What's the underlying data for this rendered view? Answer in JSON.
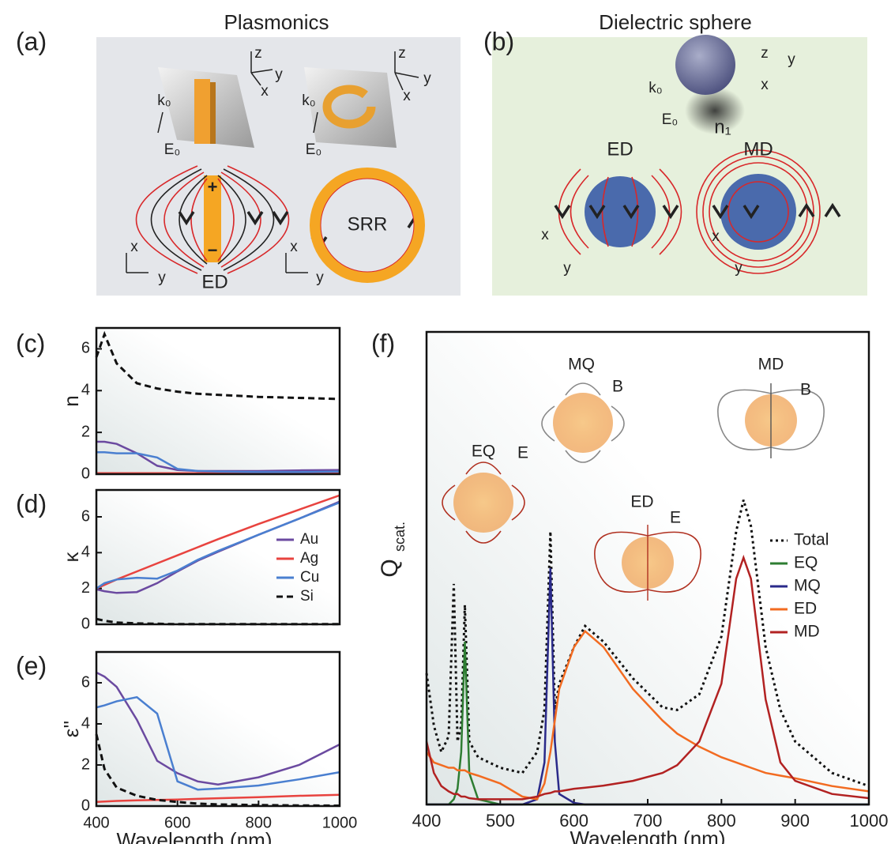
{
  "diagrams": {
    "a": {
      "label": "(a)",
      "title": "Plasmonics",
      "texts": [
        "z",
        "y",
        "x",
        "k₀",
        "E₀",
        "z",
        "y",
        "x",
        "k₀",
        "E₀",
        "+",
        "−",
        "SRR",
        "ED",
        "x",
        "y",
        "x",
        "y"
      ]
    },
    "b": {
      "label": "(b)",
      "title": "Dielectric sphere",
      "texts": [
        "z",
        "y",
        "x",
        "k₀",
        "E₀",
        "n₁",
        "ED",
        "MD",
        "x",
        "y",
        "x",
        "y"
      ]
    }
  },
  "chart_data": [
    {
      "type": "line",
      "label": "(c)",
      "ylabel": "n",
      "x": [
        400,
        420,
        450,
        500,
        550,
        600,
        650,
        700,
        800,
        900,
        1000
      ],
      "xlim": [
        400,
        1000
      ],
      "ylim": [
        0,
        7
      ],
      "yticks": [
        0,
        2,
        4,
        6
      ],
      "series": [
        {
          "color": "#6b4aa0",
          "dash": "solid",
          "values": [
            1.55,
            1.55,
            1.45,
            1.0,
            0.4,
            0.2,
            0.15,
            0.15,
            0.15,
            0.18,
            0.2
          ]
        },
        {
          "color": "#e8433f",
          "dash": "solid",
          "values": [
            0.05,
            0.05,
            0.05,
            0.05,
            0.05,
            0.05,
            0.05,
            0.05,
            0.05,
            0.05,
            0.05
          ]
        },
        {
          "color": "#4a7fd0",
          "dash": "solid",
          "values": [
            1.05,
            1.05,
            1.0,
            1.0,
            0.8,
            0.25,
            0.15,
            0.12,
            0.1,
            0.1,
            0.12
          ]
        },
        {
          "color": "#111111",
          "dash": "dashed",
          "values": [
            5.6,
            6.7,
            5.3,
            4.35,
            4.1,
            3.95,
            3.85,
            3.8,
            3.7,
            3.65,
            3.6
          ]
        }
      ]
    },
    {
      "type": "line",
      "label": "(d)",
      "ylabel": "κ",
      "x": [
        400,
        420,
        450,
        500,
        550,
        600,
        650,
        700,
        800,
        900,
        1000
      ],
      "xlim": [
        400,
        1000
      ],
      "ylim": [
        0,
        7.5
      ],
      "yticks": [
        0,
        2,
        4,
        6
      ],
      "legend": "right",
      "series": [
        {
          "name": "Au",
          "color": "#6b4aa0",
          "dash": "solid",
          "values": [
            1.95,
            1.85,
            1.75,
            1.8,
            2.3,
            2.95,
            3.55,
            4.05,
            5.0,
            5.9,
            6.85
          ]
        },
        {
          "name": "Ag",
          "color": "#e8433f",
          "dash": "solid",
          "values": [
            2.0,
            2.2,
            2.5,
            2.95,
            3.4,
            3.85,
            4.3,
            4.75,
            5.6,
            6.4,
            7.2
          ]
        },
        {
          "name": "Cu",
          "color": "#4a7fd0",
          "dash": "solid",
          "values": [
            2.0,
            2.3,
            2.5,
            2.6,
            2.55,
            3.0,
            3.6,
            4.1,
            5.0,
            5.9,
            6.8
          ]
        },
        {
          "name": "Si",
          "color": "#111111",
          "dash": "dashed",
          "values": [
            0.3,
            0.2,
            0.1,
            0.05,
            0.03,
            0.01,
            0.01,
            0.01,
            0.01,
            0.01,
            0.01
          ]
        }
      ]
    },
    {
      "type": "line",
      "label": "(e)",
      "ylabel": "ε''",
      "xlabel": "Wavelength (nm)",
      "x": [
        400,
        420,
        450,
        500,
        550,
        600,
        650,
        700,
        800,
        900,
        1000
      ],
      "xlim": [
        400,
        1000
      ],
      "ylim": [
        0,
        7.5
      ],
      "yticks": [
        0,
        2,
        4,
        6
      ],
      "xticks": [
        400,
        600,
        800,
        1000
      ],
      "series": [
        {
          "color": "#6b4aa0",
          "dash": "solid",
          "values": [
            6.5,
            6.3,
            5.8,
            4.2,
            2.2,
            1.6,
            1.2,
            1.05,
            1.4,
            2.0,
            3.0
          ]
        },
        {
          "color": "#e8433f",
          "dash": "solid",
          "values": [
            0.2,
            0.22,
            0.25,
            0.28,
            0.3,
            0.32,
            0.35,
            0.38,
            0.43,
            0.5,
            0.55
          ]
        },
        {
          "color": "#4a7fd0",
          "dash": "solid",
          "values": [
            4.8,
            4.9,
            5.1,
            5.3,
            4.5,
            1.2,
            0.8,
            0.85,
            1.0,
            1.3,
            1.65
          ]
        },
        {
          "color": "#111111",
          "dash": "dashed",
          "values": [
            3.5,
            1.8,
            0.9,
            0.5,
            0.3,
            0.2,
            0.12,
            0.08,
            0.05,
            0.03,
            0.02
          ]
        }
      ]
    },
    {
      "type": "line",
      "label": "(f)",
      "ylabel": "Q",
      "ylabel_sub": "scat.",
      "xlabel": "Wavelength (nm)",
      "x": [
        400,
        410,
        420,
        430,
        437,
        442,
        447,
        452,
        458,
        470,
        500,
        530,
        550,
        560,
        568,
        574,
        580,
        600,
        615,
        640,
        680,
        720,
        740,
        770,
        800,
        820,
        830,
        840,
        860,
        880,
        900,
        950,
        1000
      ],
      "xlim": [
        400,
        1000
      ],
      "ylim": [
        0,
        9
      ],
      "xticks": [
        400,
        500,
        600,
        700,
        800,
        900,
        1000
      ],
      "legend": "right",
      "series": [
        {
          "name": "Total",
          "color": "#111111",
          "dash": "dotted",
          "values": [
            2.5,
            1.5,
            1.0,
            1.3,
            4.2,
            1.2,
            1.5,
            3.8,
            1.2,
            0.9,
            0.7,
            0.6,
            1.0,
            1.8,
            5.2,
            1.8,
            2.3,
            3.0,
            3.4,
            3.1,
            2.4,
            1.85,
            1.8,
            2.1,
            3.2,
            5.2,
            5.8,
            5.3,
            3.0,
            1.8,
            1.2,
            0.6,
            0.35
          ]
        },
        {
          "name": "EQ",
          "color": "#2e7d32",
          "dash": "solid",
          "values": [
            0,
            0,
            0,
            0,
            0.1,
            0.3,
            1.0,
            3.1,
            0.6,
            0.1,
            0,
            0,
            0,
            0,
            0,
            0,
            0,
            0,
            0,
            0,
            0,
            0,
            0,
            0,
            0,
            0,
            0,
            0,
            0,
            0,
            0,
            0,
            0
          ]
        },
        {
          "name": "MQ",
          "color": "#2a2a8a",
          "dash": "solid",
          "values": [
            0,
            0,
            0,
            0,
            0,
            0,
            0,
            0,
            0,
            0,
            0,
            0,
            0.1,
            0.8,
            4.5,
            1.2,
            0.2,
            0.03,
            0,
            0,
            0,
            0,
            0,
            0,
            0,
            0,
            0,
            0,
            0,
            0,
            0,
            0,
            0
          ]
        },
        {
          "name": "ED",
          "color": "#f26b21",
          "dash": "solid",
          "values": [
            1.0,
            0.8,
            0.75,
            0.7,
            0.7,
            0.65,
            0.65,
            0.65,
            0.6,
            0.55,
            0.4,
            0.15,
            0.1,
            0.4,
            1.0,
            1.6,
            2.2,
            3.0,
            3.3,
            3.0,
            2.2,
            1.6,
            1.35,
            1.1,
            0.9,
            0.8,
            0.75,
            0.7,
            0.6,
            0.55,
            0.5,
            0.35,
            0.25
          ]
        },
        {
          "name": "MD",
          "color": "#b22222",
          "dash": "solid",
          "values": [
            1.2,
            0.6,
            0.35,
            0.25,
            0.2,
            0.2,
            0.15,
            0.15,
            0.12,
            0.1,
            0.1,
            0.1,
            0.15,
            0.2,
            0.22,
            0.25,
            0.25,
            0.3,
            0.32,
            0.36,
            0.45,
            0.6,
            0.75,
            1.2,
            2.3,
            4.3,
            4.7,
            4.3,
            2.0,
            0.8,
            0.45,
            0.2,
            0.12
          ]
        }
      ],
      "annotations": [
        {
          "text": "MQ",
          "color": "#222222"
        },
        {
          "text": "B",
          "color": "#888888"
        },
        {
          "text": "MD",
          "color": "#222222"
        },
        {
          "text": "B",
          "color": "#888888"
        },
        {
          "text": "EQ",
          "color": "#222222"
        },
        {
          "text": "E",
          "color": "#b03020"
        },
        {
          "text": "ED",
          "color": "#222222"
        },
        {
          "text": "E",
          "color": "#b03020"
        }
      ]
    }
  ]
}
